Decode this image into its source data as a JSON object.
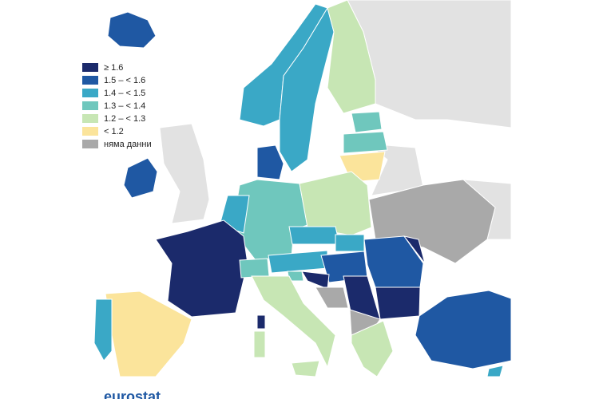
{
  "legend": {
    "items": [
      {
        "label": "≥ 1.6",
        "color": "#1b2a6b"
      },
      {
        "label": "1.5 – < 1.6",
        "color": "#1f58a3"
      },
      {
        "label": "1.4 – < 1.5",
        "color": "#3aa8c6"
      },
      {
        "label": "1.3 – < 1.4",
        "color": "#6fc7bd"
      },
      {
        "label": "1.2 – < 1.3",
        "color": "#c7e6b4"
      },
      {
        "label": "< 1.2",
        "color": "#fbe49b"
      },
      {
        "label": "няма данни",
        "color": "#a9a9a9"
      }
    ]
  },
  "footer": {
    "logo": "eurostat"
  }
}
